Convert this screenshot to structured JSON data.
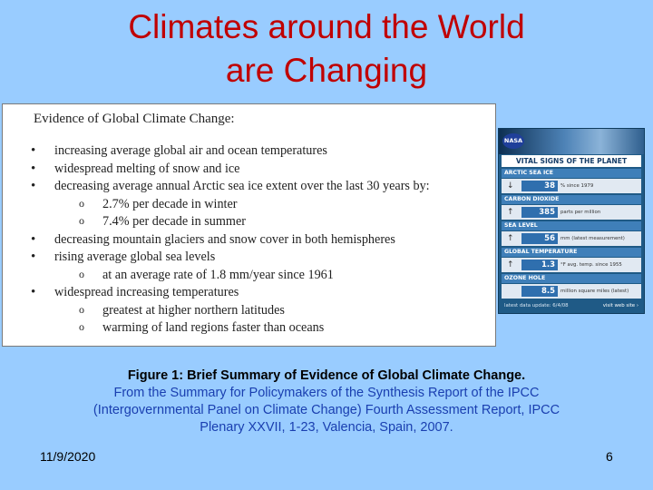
{
  "title": {
    "line1": "Climates around the World",
    "line2": "are Changing"
  },
  "evidence": {
    "heading": "Evidence of Global Climate Change:",
    "items": [
      {
        "level": 1,
        "text": "increasing average global air and ocean temperatures"
      },
      {
        "level": 1,
        "text": "widespread melting of snow and ice"
      },
      {
        "level": 1,
        "text": "decreasing average annual Arctic sea ice extent over the last 30 years by:"
      },
      {
        "level": 2,
        "text": "2.7% per decade in winter"
      },
      {
        "level": 2,
        "text": "7.4% per decade in summer"
      },
      {
        "level": 1,
        "text": "decreasing mountain glaciers and snow cover in both hemispheres"
      },
      {
        "level": 1,
        "text": "rising average global sea levels"
      },
      {
        "level": 2,
        "text": "at an average rate of 1.8 mm/year since 1961"
      },
      {
        "level": 1,
        "text": "widespread increasing temperatures"
      },
      {
        "level": 2,
        "text": "greatest at higher northern latitudes"
      },
      {
        "level": 2,
        "text": "warming of land regions faster than oceans"
      }
    ]
  },
  "nasa_widget": {
    "logo": "NASA",
    "header": "VITAL SIGNS OF THE PLANET",
    "rows": [
      {
        "category": "ARCTIC SEA ICE",
        "arrow": "↓",
        "value": "38",
        "unit": "% since 1979"
      },
      {
        "category": "CARBON DIOXIDE",
        "arrow": "↑",
        "value": "385",
        "unit": "parts per million"
      },
      {
        "category": "SEA LEVEL",
        "arrow": "↑",
        "value": "56",
        "unit": "mm (latest measurement)"
      },
      {
        "category": "GLOBAL TEMPERATURE",
        "arrow": "↑",
        "value": "1.3",
        "unit": "°F avg. temp. since 1955"
      },
      {
        "category": "OZONE HOLE",
        "arrow": "",
        "value": "8.5",
        "unit": "million square miles (latest)"
      }
    ],
    "footer_update": "latest data update: 6/4/08",
    "footer_link": "visit web site ›"
  },
  "caption": {
    "figure": "Figure 1: Brief Summary of Evidence of Global Climate Change.",
    "source_line1": "From the Summary for Policymakers of the Synthesis Report of the IPCC",
    "source_line2": "(Intergovernmental Panel on Climate Change) Fourth Assessment Report, IPCC",
    "source_line3": "Plenary XXVII, 1-23, Valencia, Spain, 2007."
  },
  "footer": {
    "date": "11/9/2020",
    "page": "6"
  }
}
